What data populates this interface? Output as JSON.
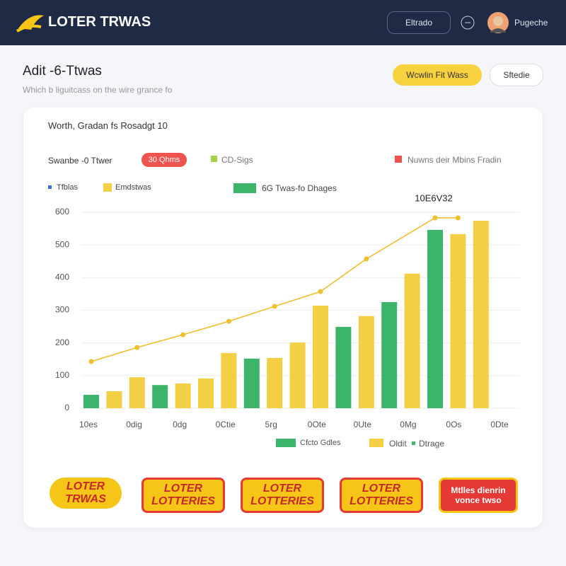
{
  "header": {
    "brand": "LOTER TRWAS",
    "button": "Eltrado",
    "user": "Pugeche"
  },
  "page": {
    "title": "Adit -6-Ttwas",
    "subtitle": "Which b liguitcass on the wire grance fo",
    "primary_button": "Wcwlin Fit Wass",
    "secondary_button": "Sftedie"
  },
  "card": {
    "heading": "Worth,   Gradan fs Rosadgt 10",
    "filter_label": "Swanbe -0 Ttwer",
    "chip": "30 Qhms",
    "filter_2": "CD-Sigs",
    "filter_3": "Nuwns deir Mbins Fradin",
    "legend_top": [
      "Tfblas",
      "Emdstwas",
      "6G Twas-fo Dhages"
    ],
    "legend_bottom": [
      "Cfcto Gdles",
      "Oldit",
      "Dtrage"
    ]
  },
  "chart_data": {
    "type": "bar",
    "annotation": "10E6V32",
    "values": [
      41,
      52,
      95,
      71,
      76,
      91,
      169,
      152,
      154,
      201,
      314,
      249,
      282,
      325,
      412,
      546,
      533,
      574
    ],
    "colors": [
      "#3cb56a",
      "#f2cf45",
      "#f2cf45",
      "#3cb56a",
      "#f2cf45",
      "#f2cf45",
      "#f2cf45",
      "#3cb56a",
      "#f2cf45",
      "#f2cf45",
      "#f2cf45",
      "#3cb56a",
      "#f2cf45",
      "#3cb56a",
      "#f2cf45",
      "#3cb56a",
      "#f2cf45",
      "#f2cf45"
    ],
    "line": {
      "color": "#f0bf2e",
      "x": [
        0,
        2,
        4,
        6,
        8,
        10,
        12,
        15,
        16
      ],
      "values": [
        143,
        186,
        225,
        266,
        312,
        357,
        457,
        583,
        583
      ]
    },
    "xlabels": [
      "10es",
      "0dig",
      "0dg",
      "0Ctie",
      "5rg",
      "0Ote",
      "0Ute",
      "0Mg",
      "0Os",
      "0Dte"
    ],
    "ylim": [
      0,
      600
    ],
    "yticks": [
      0,
      100,
      200,
      300,
      400,
      500,
      600
    ],
    "grid": true
  },
  "badges": [
    "LOTER TRWAS",
    "LOTER LOTTERIES",
    "LOTER LOTTERIES",
    "LOTER LOTTERIES",
    "Mtlles dienrin vonce twso"
  ]
}
